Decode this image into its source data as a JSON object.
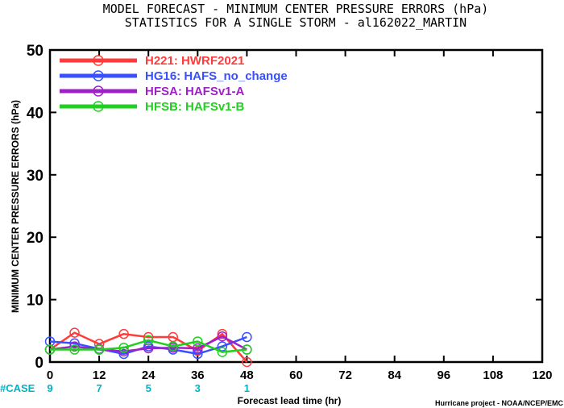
{
  "chart_data": {
    "type": "line",
    "title": "MODEL FORECAST - MINIMUM CENTER PRESSURE ERRORS (hPa)",
    "subtitle": "STATISTICS FOR A SINGLE STORM - al162022_MARTIN",
    "xlabel": "Forecast lead time (hr)",
    "ylabel": "MINIMUM CENTER PRESSURE ERRORS (hPa)",
    "xlim": [
      0,
      120
    ],
    "ylim": [
      0,
      50
    ],
    "x_ticks": [
      0,
      12,
      24,
      36,
      48,
      60,
      72,
      84,
      96,
      108,
      120
    ],
    "y_ticks": [
      0,
      10,
      20,
      30,
      40,
      50
    ],
    "legend_position": "top-left",
    "grid": false,
    "case_label": "#CASE",
    "cases": [
      {
        "x": 0,
        "count": "9"
      },
      {
        "x": 12,
        "count": "7"
      },
      {
        "x": 24,
        "count": "5"
      },
      {
        "x": 36,
        "count": "3"
      },
      {
        "x": 48,
        "count": "1"
      }
    ],
    "credit": "Hurricane project - NOAA/NCEP/EMC",
    "series": [
      {
        "name": "H221: HWRF2021",
        "color": "#ff3b3b",
        "x": [
          0,
          6,
          12,
          18,
          24,
          30,
          36,
          42,
          48
        ],
        "values": [
          2.0,
          4.7,
          2.9,
          4.5,
          4.0,
          4.0,
          1.8,
          4.5,
          0.0
        ]
      },
      {
        "name": "HG16: HAFS_no_change",
        "color": "#3850ff",
        "x": [
          0,
          6,
          12,
          18,
          24,
          30,
          36,
          42,
          48
        ],
        "values": [
          3.3,
          3.0,
          2.1,
          1.3,
          2.5,
          2.0,
          1.3,
          2.5,
          4.0
        ]
      },
      {
        "name": "HFSA: HAFSv1-A",
        "color": "#a020c8",
        "x": [
          0,
          6,
          12,
          18,
          24,
          30,
          36,
          42,
          48
        ],
        "values": [
          2.0,
          2.5,
          2.0,
          1.7,
          2.2,
          2.3,
          2.2,
          4.1,
          2.0
        ]
      },
      {
        "name": "HFSB: HAFSv1-B",
        "color": "#20d020",
        "x": [
          0,
          6,
          12,
          18,
          24,
          30,
          36,
          42,
          48
        ],
        "values": [
          2.0,
          2.0,
          2.0,
          2.3,
          3.5,
          2.5,
          3.3,
          1.6,
          2.0
        ]
      }
    ]
  }
}
